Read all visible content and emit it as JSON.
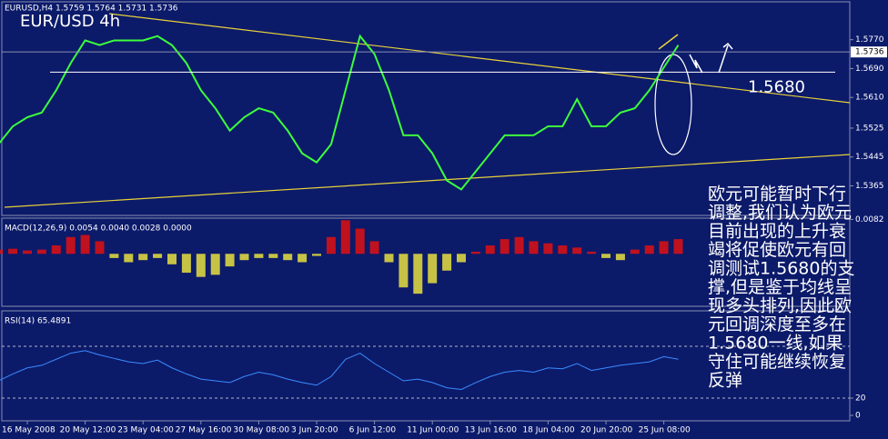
{
  "chart_data": [
    {
      "type": "line",
      "title": "EURUSD,H4  1.5759 1.5764 1.5731 1.5736",
      "subtitle": "EUR/USD 4h",
      "categories": [
        null,
        null,
        "16 May 2008",
        null,
        null,
        null,
        "20 May 12:00",
        null,
        null,
        null,
        "23 May 04:00",
        null,
        null,
        null,
        "27 May 16:00",
        null,
        null,
        null,
        "30 May 08:00",
        null,
        null,
        null,
        "3 Jun 20:00",
        null,
        null,
        null,
        "6 Jun 12:00",
        null,
        null,
        null,
        "11 Jun 00:00",
        null,
        null,
        null,
        "13 Jun 16:00",
        null,
        null,
        null,
        "18 Jun 04:00",
        null,
        null,
        null,
        "20 Jun 20:00",
        null,
        null,
        null,
        "25 Jun 08:00",
        null
      ],
      "values": [
        1.548,
        1.553,
        1.5555,
        1.5568,
        1.563,
        1.5705,
        1.5768,
        1.5755,
        1.5768,
        1.5768,
        1.5768,
        1.578,
        1.5755,
        1.5705,
        1.563,
        1.558,
        1.5518,
        1.5555,
        1.558,
        1.5568,
        1.5518,
        1.5455,
        1.543,
        1.548,
        1.563,
        1.578,
        1.573,
        1.563,
        1.5505,
        1.5505,
        1.5455,
        1.538,
        1.5355,
        1.5405,
        1.5455,
        1.5505,
        1.5505,
        1.5505,
        1.553,
        1.553,
        1.5605,
        1.553,
        1.553,
        1.5568,
        1.558,
        1.563,
        1.5693,
        1.5755
      ],
      "color": "#3cff3c",
      "ylim": [
        1.5283,
        1.5875
      ],
      "yticks": [
        {
          "value": 1.577,
          "label": "1.5770"
        },
        {
          "value": 1.569,
          "label": "1.5690"
        },
        {
          "value": 1.561,
          "label": "1.5610"
        },
        {
          "value": 1.5525,
          "label": "1.5525"
        },
        {
          "value": 1.5445,
          "label": "1.5445"
        },
        {
          "value": 1.5365,
          "label": "1.5365"
        }
      ],
      "last_price": {
        "value": 1.5736,
        "label": "1.5736"
      },
      "level": {
        "value": 1.568,
        "label": "1.5680"
      },
      "note": [
        "欧元可能暂时下行",
        "调整,我们认为欧元",
        "目前出现的上升衰",
        "竭将促使欧元有回",
        "调测试1.5680的支",
        "撑,但是鉴于均线呈",
        "现多头排列,因此欧",
        "元回调深度至多在",
        "1.5680一线,如果",
        "守住可能继续恢复",
        "反弹"
      ]
    },
    {
      "type": "bar",
      "title": "MACD(12,26,9) 0.0054 0.0040 0.0028 0.0000",
      "values": [
        0.001,
        0.0012,
        0.0008,
        0.001,
        0.002,
        0.004,
        0.0045,
        0.003,
        -0.001,
        -0.002,
        -0.0015,
        -0.001,
        -0.0025,
        -0.0045,
        -0.0055,
        -0.005,
        -0.003,
        -0.0015,
        -0.001,
        -0.001,
        -0.0015,
        -0.002,
        -0.0005,
        0.004,
        0.008,
        0.006,
        0.003,
        -0.002,
        -0.008,
        -0.0095,
        -0.007,
        -0.004,
        -0.002,
        0.0005,
        0.002,
        0.0035,
        0.004,
        0.003,
        0.0025,
        0.002,
        0.0015,
        0.0005,
        -0.001,
        -0.0015,
        0.001,
        0.002,
        0.003,
        0.0035
      ],
      "up_color": "#e01010",
      "down_color": "#e8e040",
      "ylim": [
        -0.0125,
        0.0085
      ],
      "yticks": [
        {
          "value": 0.0082,
          "label": "0.0082"
        }
      ]
    },
    {
      "type": "line",
      "title": "RSI(14) 65.4891",
      "values": [
        40,
        48,
        55,
        58,
        65,
        72,
        75,
        70,
        66,
        62,
        60,
        64,
        55,
        48,
        42,
        40,
        38,
        45,
        50,
        47,
        42,
        38,
        35,
        45,
        65,
        72,
        60,
        50,
        40,
        42,
        38,
        32,
        30,
        38,
        45,
        50,
        52,
        50,
        55,
        54,
        60,
        52,
        55,
        58,
        60,
        62,
        68,
        65
      ],
      "color": "#3a8cff",
      "ylim": [
        0,
        100
      ],
      "yticks": [
        20,
        0
      ],
      "levels": [
        20,
        80
      ]
    }
  ]
}
